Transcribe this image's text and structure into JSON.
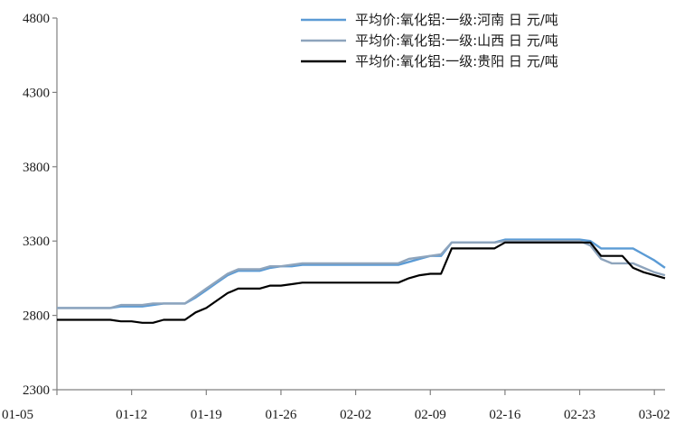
{
  "chart_data": {
    "type": "line",
    "ylim": [
      2300,
      4800
    ],
    "yticks": [
      2300,
      2800,
      3300,
      3800,
      4300,
      4800
    ],
    "xticks": [
      "01-05",
      "01-12",
      "01-19",
      "01-26",
      "02-02",
      "02-09",
      "02-16",
      "02-23",
      "03-02"
    ],
    "grid": false,
    "legend_position": "top-right",
    "x": [
      "01-05",
      "01-06",
      "01-07",
      "01-08",
      "01-09",
      "01-10",
      "01-11",
      "01-12",
      "01-13",
      "01-14",
      "01-15",
      "01-16",
      "01-17",
      "01-18",
      "01-19",
      "01-20",
      "01-21",
      "01-22",
      "01-23",
      "01-24",
      "01-25",
      "01-26",
      "01-27",
      "01-28",
      "01-29",
      "01-30",
      "01-31",
      "02-01",
      "02-02",
      "02-03",
      "02-04",
      "02-05",
      "02-06",
      "02-07",
      "02-08",
      "02-09",
      "02-10",
      "02-11",
      "02-12",
      "02-13",
      "02-14",
      "02-15",
      "02-16",
      "02-17",
      "02-18",
      "02-19",
      "02-20",
      "02-21",
      "02-22",
      "02-23",
      "02-24",
      "02-25",
      "02-26",
      "02-27",
      "02-28",
      "03-01",
      "03-02",
      "03-03"
    ],
    "series": [
      {
        "name": "平均价:氧化铝:一级:河南 日 元/吨",
        "color": "#5b9bd5",
        "values": [
          2850,
          2850,
          2850,
          2850,
          2850,
          2850,
          2860,
          2860,
          2860,
          2870,
          2880,
          2880,
          2880,
          2920,
          2970,
          3020,
          3070,
          3100,
          3100,
          3100,
          3120,
          3130,
          3130,
          3140,
          3140,
          3140,
          3140,
          3140,
          3140,
          3140,
          3140,
          3140,
          3140,
          3160,
          3180,
          3200,
          3200,
          3290,
          3290,
          3290,
          3290,
          3290,
          3310,
          3310,
          3310,
          3310,
          3310,
          3310,
          3310,
          3310,
          3300,
          3250,
          3250,
          3250,
          3250,
          3210,
          3170,
          3120
        ]
      },
      {
        "name": "平均价:氧化铝:一级:山西 日 元/吨",
        "color": "#8ea4bc",
        "values": [
          2850,
          2850,
          2850,
          2850,
          2850,
          2850,
          2870,
          2870,
          2870,
          2880,
          2880,
          2880,
          2880,
          2930,
          2980,
          3030,
          3080,
          3110,
          3110,
          3110,
          3130,
          3130,
          3140,
          3150,
          3150,
          3150,
          3150,
          3150,
          3150,
          3150,
          3150,
          3150,
          3150,
          3180,
          3190,
          3200,
          3210,
          3290,
          3290,
          3290,
          3290,
          3290,
          3300,
          3300,
          3300,
          3300,
          3300,
          3300,
          3300,
          3300,
          3270,
          3180,
          3150,
          3150,
          3150,
          3120,
          3090,
          3070
        ]
      },
      {
        "name": "平均价:氧化铝:一级:贵阳 日 元/吨",
        "color": "#000000",
        "values": [
          2770,
          2770,
          2770,
          2770,
          2770,
          2770,
          2760,
          2760,
          2750,
          2750,
          2770,
          2770,
          2770,
          2820,
          2850,
          2900,
          2950,
          2980,
          2980,
          2980,
          3000,
          3000,
          3010,
          3020,
          3020,
          3020,
          3020,
          3020,
          3020,
          3020,
          3020,
          3020,
          3020,
          3050,
          3070,
          3080,
          3080,
          3250,
          3250,
          3250,
          3250,
          3250,
          3290,
          3290,
          3290,
          3290,
          3290,
          3290,
          3290,
          3290,
          3290,
          3200,
          3200,
          3200,
          3120,
          3090,
          3070,
          3050
        ]
      }
    ]
  }
}
